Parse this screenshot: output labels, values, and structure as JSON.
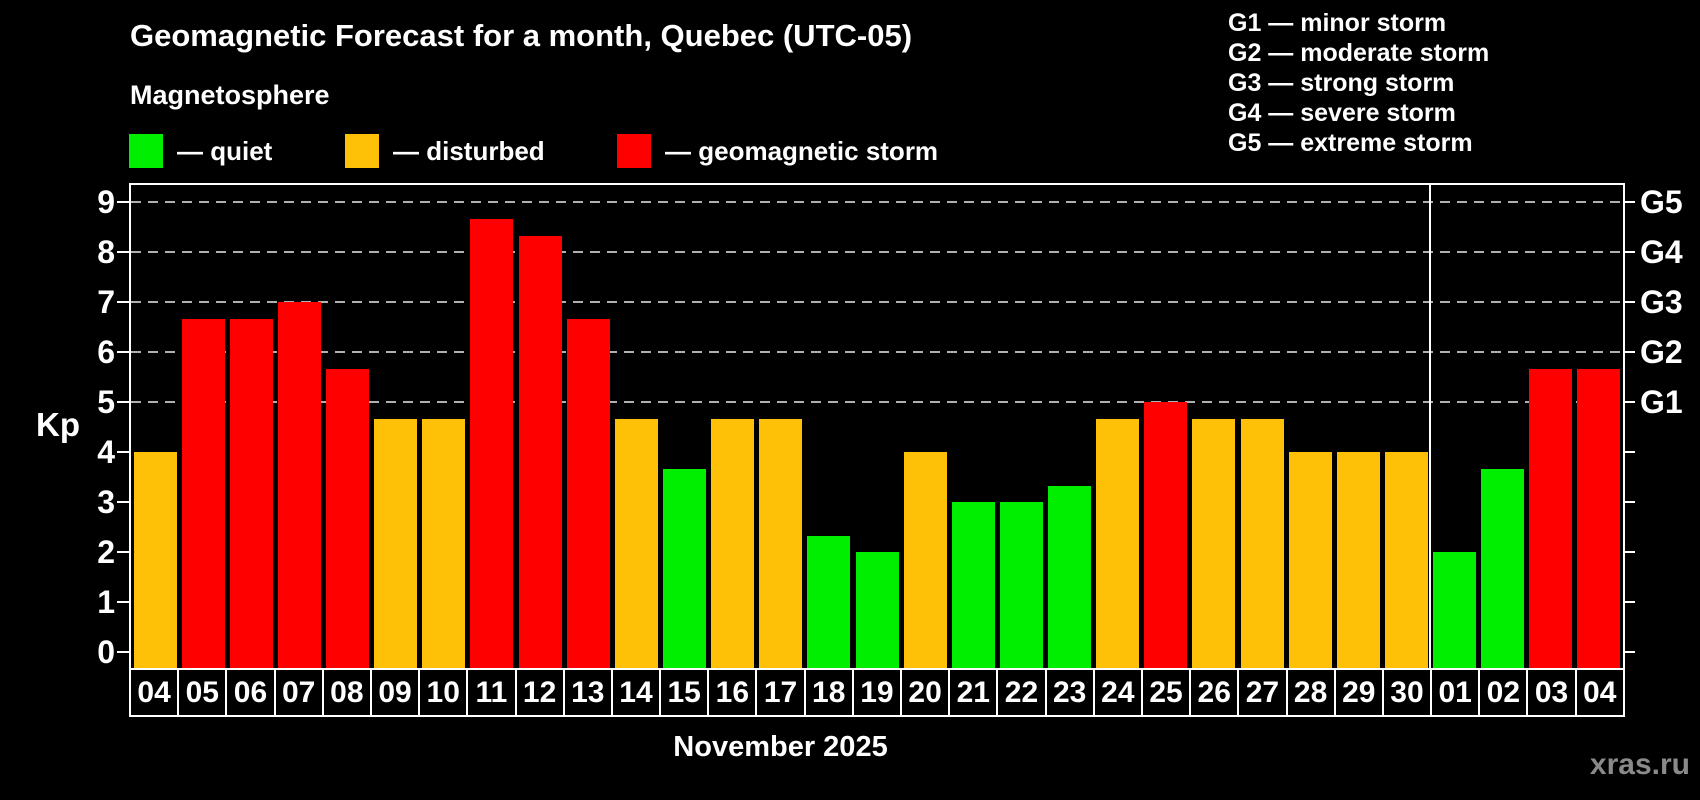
{
  "title": "Geomagnetic Forecast for a month, Quebec (UTC-05)",
  "subtitle": "Magnetosphere",
  "kp_axis_label": "Kp",
  "month_label": "November 2025",
  "watermark": "xras.ru",
  "colors": {
    "quiet": "#00ee00",
    "disturbed": "#ffc107",
    "storm": "#ff0000",
    "grid": "#b0b0b0",
    "axis": "#ffffff",
    "watermark": "#8a8a8a",
    "background": "#000000"
  },
  "legend": [
    {
      "status": "quiet",
      "label": "— quiet"
    },
    {
      "status": "disturbed",
      "label": "— disturbed"
    },
    {
      "status": "storm",
      "label": "— geomagnetic storm"
    }
  ],
  "storm_scale_legend": [
    "G1 — minor storm",
    "G2 — moderate storm",
    "G3 — strong storm",
    "G4 — severe storm",
    "G5 — extreme storm"
  ],
  "chart_data": {
    "type": "bar",
    "title": "Geomagnetic Forecast for a month, Quebec (UTC-05)",
    "xlabel": "November 2025",
    "ylabel": "Kp",
    "ylim": [
      0,
      9.4
    ],
    "grid": "dashed horizontal at Kp 5-9 only",
    "grid_kp_levels": [
      5,
      6,
      7,
      8,
      9
    ],
    "y_ticks": [
      0,
      1,
      2,
      3,
      4,
      5,
      6,
      7,
      8,
      9
    ],
    "right_axis_labels": [
      {
        "label": "G5",
        "kp": 9
      },
      {
        "label": "G4",
        "kp": 8
      },
      {
        "label": "G3",
        "kp": 7
      },
      {
        "label": "G2",
        "kp": 6
      },
      {
        "label": "G1",
        "kp": 5
      }
    ],
    "month_separator_after_index": 26,
    "categories": [
      "04",
      "05",
      "06",
      "07",
      "08",
      "09",
      "10",
      "11",
      "12",
      "13",
      "14",
      "15",
      "16",
      "17",
      "18",
      "19",
      "20",
      "21",
      "22",
      "23",
      "24",
      "25",
      "26",
      "27",
      "28",
      "29",
      "30",
      "01",
      "02",
      "03",
      "04"
    ],
    "values": [
      4.0,
      6.67,
      6.67,
      7.0,
      5.67,
      4.67,
      4.67,
      8.67,
      8.33,
      6.67,
      4.67,
      3.67,
      4.67,
      4.67,
      2.33,
      2.0,
      4.0,
      3.0,
      3.0,
      3.33,
      4.67,
      5.0,
      4.67,
      4.67,
      4.0,
      4.0,
      4.0,
      2.0,
      3.67,
      5.67,
      5.67
    ],
    "statuses": [
      "disturbed",
      "storm",
      "storm",
      "storm",
      "storm",
      "disturbed",
      "disturbed",
      "storm",
      "storm",
      "storm",
      "disturbed",
      "quiet",
      "disturbed",
      "disturbed",
      "quiet",
      "quiet",
      "disturbed",
      "quiet",
      "quiet",
      "quiet",
      "disturbed",
      "storm",
      "disturbed",
      "disturbed",
      "disturbed",
      "disturbed",
      "disturbed",
      "quiet",
      "quiet",
      "storm",
      "storm"
    ]
  }
}
